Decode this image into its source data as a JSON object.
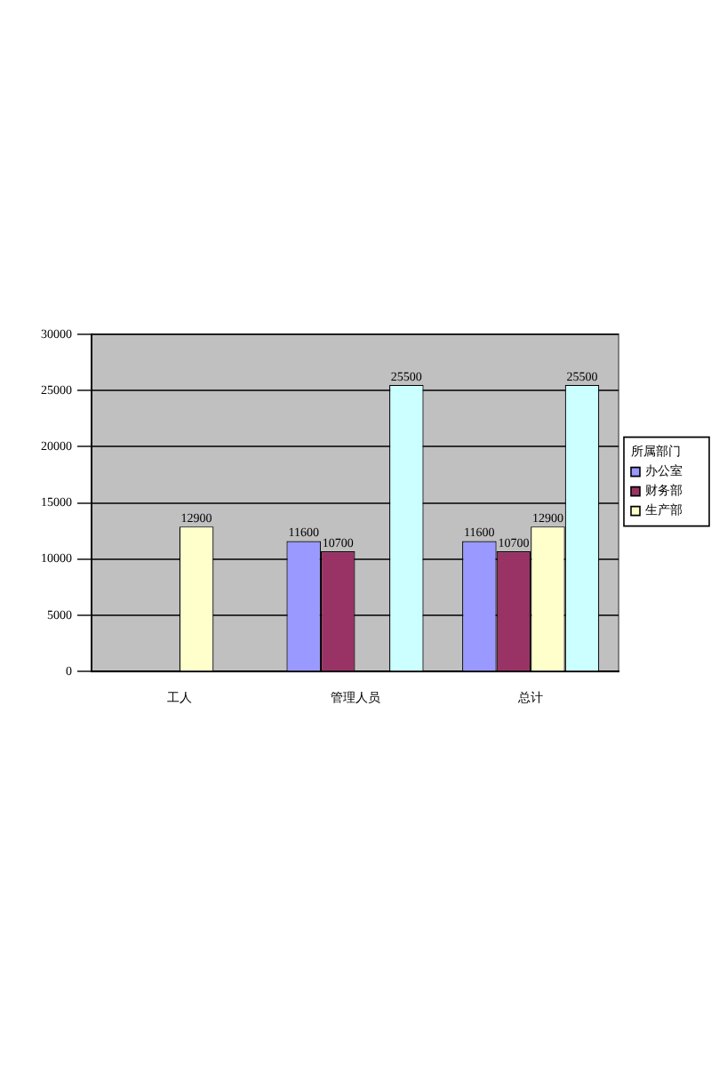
{
  "chart_data": {
    "type": "bar",
    "categories": [
      "工人",
      "管理人员",
      "总计"
    ],
    "series": [
      {
        "name": "办公室",
        "color": "#9999ff",
        "values": [
          null,
          11600,
          11600
        ]
      },
      {
        "name": "财务部",
        "color": "#993366",
        "values": [
          null,
          10700,
          10700
        ]
      },
      {
        "name": "生产部",
        "color": "#ffffcc",
        "values": [
          12900,
          null,
          12900
        ]
      },
      {
        "color": "#ccffff",
        "values": [
          null,
          25500,
          25500
        ]
      }
    ],
    "legend_title": "所属部门",
    "legend": "right",
    "ylim": [
      0,
      30000
    ],
    "yticks": [
      0,
      5000,
      10000,
      15000,
      20000,
      25000,
      30000
    ],
    "grid": "y",
    "data_labels": true
  }
}
